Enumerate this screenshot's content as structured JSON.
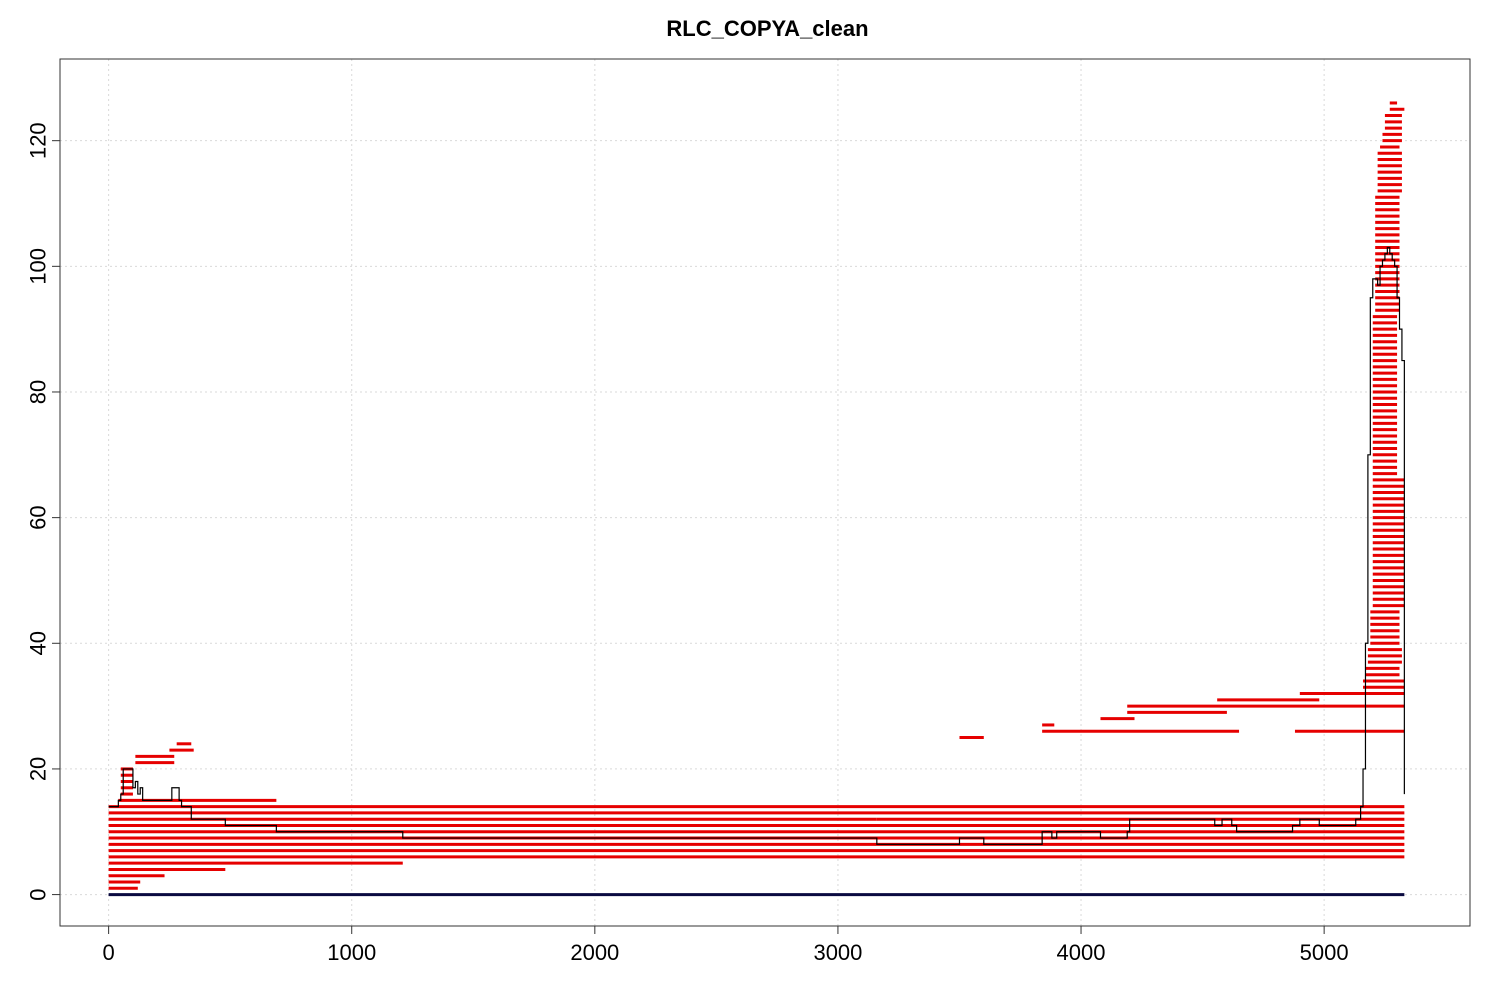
{
  "chart_data": {
    "type": "line",
    "title": "RLC_COPYA_clean",
    "xlabel": "",
    "ylabel": "",
    "xlim": [
      -200,
      5600
    ],
    "ylim": [
      -5,
      133
    ],
    "x_ticks": [
      "0",
      "1000",
      "2000",
      "3000",
      "4000",
      "5000"
    ],
    "y_ticks": [
      "0",
      "20",
      "40",
      "60",
      "80",
      "100",
      "120"
    ],
    "grid": true,
    "colors": {
      "segments": "#e60000",
      "coverage": "#000000",
      "baseline": "#0a0a40",
      "grid": "#d9d9d9"
    },
    "segments": [
      {
        "x0": 0,
        "x1": 5330,
        "y_from": 6,
        "y_to": 11
      },
      {
        "x0": 0,
        "x1": 3160,
        "y_from": 12,
        "y_to": 12
      },
      {
        "x0": 3160,
        "x1": 5330,
        "y_from": 12,
        "y_to": 12
      },
      {
        "x0": 0,
        "x1": 5330,
        "y_from": 13,
        "y_to": 14
      },
      {
        "x0": 0,
        "x1": 1210,
        "y_from": 5,
        "y_to": 5
      },
      {
        "x0": 0,
        "x1": 480,
        "y_from": 4,
        "y_to": 4
      },
      {
        "x0": 0,
        "x1": 230,
        "y_from": 3,
        "y_to": 3
      },
      {
        "x0": 0,
        "x1": 130,
        "y_from": 2,
        "y_to": 2
      },
      {
        "x0": 0,
        "x1": 120,
        "y_from": 1,
        "y_to": 1
      },
      {
        "x0": 40,
        "x1": 690,
        "y_from": 15,
        "y_to": 15
      },
      {
        "x0": 50,
        "x1": 100,
        "y_from": 16,
        "y_to": 20
      },
      {
        "x0": 110,
        "x1": 270,
        "y_from": 21,
        "y_to": 22
      },
      {
        "x0": 250,
        "x1": 350,
        "y_from": 23,
        "y_to": 23
      },
      {
        "x0": 280,
        "x1": 340,
        "y_from": 24,
        "y_to": 24
      },
      {
        "x0": 3500,
        "x1": 3600,
        "y_from": 25,
        "y_to": 25
      },
      {
        "x0": 3840,
        "x1": 4650,
        "y_from": 26,
        "y_to": 26
      },
      {
        "x0": 4880,
        "x1": 5330,
        "y_from": 26,
        "y_to": 26
      },
      {
        "x0": 3840,
        "x1": 3890,
        "y_from": 27,
        "y_to": 27
      },
      {
        "x0": 4080,
        "x1": 4220,
        "y_from": 28,
        "y_to": 28
      },
      {
        "x0": 4190,
        "x1": 4600,
        "y_from": 29,
        "y_to": 29
      },
      {
        "x0": 4190,
        "x1": 5330,
        "y_from": 30,
        "y_to": 30
      },
      {
        "x0": 4560,
        "x1": 4980,
        "y_from": 31,
        "y_to": 31
      },
      {
        "x0": 4900,
        "x1": 5330,
        "y_from": 32,
        "y_to": 32
      },
      {
        "x0": 5160,
        "x1": 5330,
        "y_from": 33,
        "y_to": 34
      },
      {
        "x0": 5170,
        "x1": 5310,
        "y_from": 35,
        "y_to": 36
      },
      {
        "x0": 5180,
        "x1": 5320,
        "y_from": 37,
        "y_to": 39
      },
      {
        "x0": 5190,
        "x1": 5310,
        "y_from": 40,
        "y_to": 45
      },
      {
        "x0": 5200,
        "x1": 5330,
        "y_from": 46,
        "y_to": 66
      },
      {
        "x0": 5200,
        "x1": 5300,
        "y_from": 67,
        "y_to": 92
      },
      {
        "x0": 5210,
        "x1": 5310,
        "y_from": 93,
        "y_to": 111
      },
      {
        "x0": 5220,
        "x1": 5320,
        "y_from": 112,
        "y_to": 118
      },
      {
        "x0": 5230,
        "x1": 5310,
        "y_from": 119,
        "y_to": 119
      },
      {
        "x0": 5240,
        "x1": 5320,
        "y_from": 120,
        "y_to": 121
      },
      {
        "x0": 5250,
        "x1": 5320,
        "y_from": 122,
        "y_to": 124
      },
      {
        "x0": 5270,
        "x1": 5330,
        "y_from": 125,
        "y_to": 125
      },
      {
        "x0": 5270,
        "x1": 5300,
        "y_from": 126,
        "y_to": 126
      }
    ],
    "coverage": {
      "x": [
        0,
        30,
        40,
        50,
        60,
        100,
        110,
        120,
        130,
        140,
        250,
        260,
        290,
        300,
        340,
        480,
        690,
        1210,
        3160,
        3500,
        3600,
        3830,
        3840,
        3880,
        3900,
        4080,
        4190,
        4200,
        4550,
        4580,
        4620,
        4640,
        4870,
        4900,
        4940,
        4980,
        5130,
        5150,
        5160,
        5170,
        5180,
        5190,
        5200,
        5210,
        5220,
        5230,
        5240,
        5250,
        5260,
        5270,
        5280,
        5290,
        5300,
        5310,
        5320,
        5330
      ],
      "y": [
        14,
        14,
        15,
        16,
        20,
        17,
        18,
        16,
        17,
        15,
        15,
        17,
        15,
        14,
        12,
        11,
        10,
        9,
        8,
        9,
        8,
        8,
        10,
        9,
        10,
        9,
        10,
        12,
        11,
        12,
        11,
        10,
        11,
        12,
        12,
        11,
        12,
        14,
        20,
        40,
        70,
        95,
        98,
        98,
        97,
        100,
        101,
        102,
        103,
        102,
        101,
        100,
        95,
        90,
        85,
        16
      ]
    },
    "baseline": {
      "x": [
        0,
        5330
      ],
      "y": [
        0,
        0
      ]
    }
  }
}
